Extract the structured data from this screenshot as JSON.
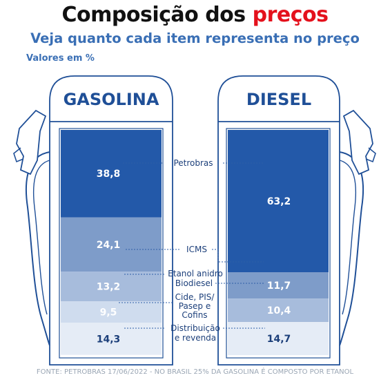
{
  "header": {
    "title_main": "Composição dos ",
    "title_accent": "preços",
    "subtitle": "Veja quanto cada item representa no preço",
    "units": "Valores em %"
  },
  "source": "FONTE: PETROBRAS 17/06/2022 - NO BRASIL 25% DA GASOLINA É COMPOSTO POR ETANOL",
  "colors": {
    "petrobras": "#2359a9",
    "icms": "#7e9cc9",
    "etanol_biodiesel": "#a7bcdc",
    "cide_pis": "#cfdcee",
    "distribuicao": "#e5ecf6",
    "outline": "#1f4f97"
  },
  "chart_data": {
    "type": "bar",
    "stacked": true,
    "units": "Valores em %",
    "categories": [
      "GASOLINA",
      "DIESEL"
    ],
    "series": [
      {
        "name": "Petrobras",
        "values": [
          38.8,
          63.2
        ],
        "labels": [
          "38,8",
          "63,2"
        ]
      },
      {
        "name": "ICMS",
        "values": [
          24.1,
          11.7
        ],
        "labels": [
          "24,1",
          "11,7"
        ]
      },
      {
        "name": "Etanol anidro",
        "values": [
          13.2,
          null
        ],
        "labels": [
          "13,2",
          ""
        ]
      },
      {
        "name": "Biodiesel",
        "values": [
          null,
          10.4
        ],
        "labels": [
          "",
          "10,4"
        ]
      },
      {
        "name": "Cide, PIS/ Pasep e Cofins",
        "values": [
          9.5,
          null
        ],
        "labels": [
          "9,5",
          ""
        ]
      },
      {
        "name": "Distribuição e revenda",
        "values": [
          14.3,
          14.7
        ],
        "labels": [
          "14,3",
          "14,7"
        ]
      }
    ],
    "legend_labels": {
      "petrobras": "Petrobras",
      "icms": "ICMS",
      "etanol": "Etanol anidro",
      "biodiesel": "Biodiesel",
      "cide_line1": "Cide, PIS/",
      "cide_line2": "Pasep e",
      "cide_line3": "Cofins",
      "dist_line1": "Distribuição",
      "dist_line2": "e revenda"
    }
  }
}
